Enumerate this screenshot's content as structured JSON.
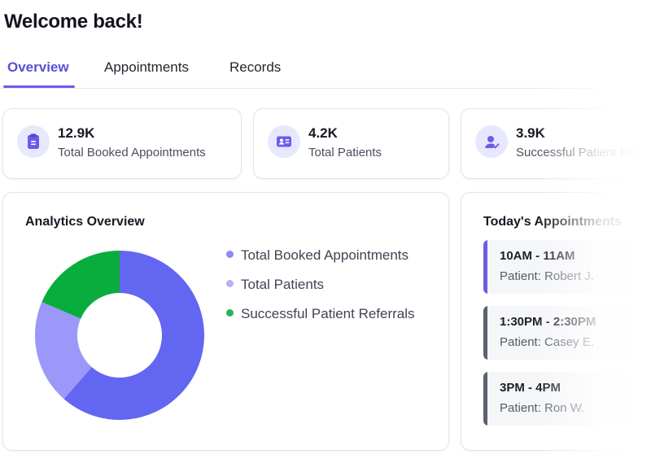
{
  "header": {
    "title": "Welcome back!"
  },
  "tabs": [
    {
      "label": "Overview",
      "active": true
    },
    {
      "label": "Appointments",
      "active": false
    },
    {
      "label": "Records",
      "active": false
    }
  ],
  "stats": [
    {
      "value": "12.9K",
      "label": "Total Booked Appointments",
      "icon": "clipboard-icon"
    },
    {
      "value": "4.2K",
      "label": "Total Patients",
      "icon": "id-card-icon"
    },
    {
      "value": "3.9K",
      "label": "Successful Patient Referrals",
      "icon": "user-check-icon"
    }
  ],
  "analytics": {
    "title": "Analytics Overview",
    "legend": [
      {
        "label": "Total Booked Appointments",
        "color": "#6366f1"
      },
      {
        "label": "Total Patients",
        "color": "#a5a3f7"
      },
      {
        "label": "Successful Patient Referrals",
        "color": "#16a34a"
      }
    ]
  },
  "chart_data": {
    "type": "pie",
    "donut": true,
    "labels": [
      "Total Booked Appointments",
      "Total Patients",
      "Successful Patient Referrals"
    ],
    "values": [
      12.9,
      4.2,
      3.9
    ],
    "unit": "K",
    "colors": [
      "#6366f1",
      "#9b98fa",
      "#08ad3e"
    ]
  },
  "appointments": {
    "title": "Today's Appointments",
    "items": [
      {
        "time": "10AM - 11AM",
        "patient": "Patient: Robert J.",
        "active": true
      },
      {
        "time": "1:30PM - 2:30PM",
        "patient": "Patient: Casey E.",
        "active": false
      },
      {
        "time": "3PM - 4PM",
        "patient": "Patient: Ron W.",
        "active": false
      }
    ]
  }
}
